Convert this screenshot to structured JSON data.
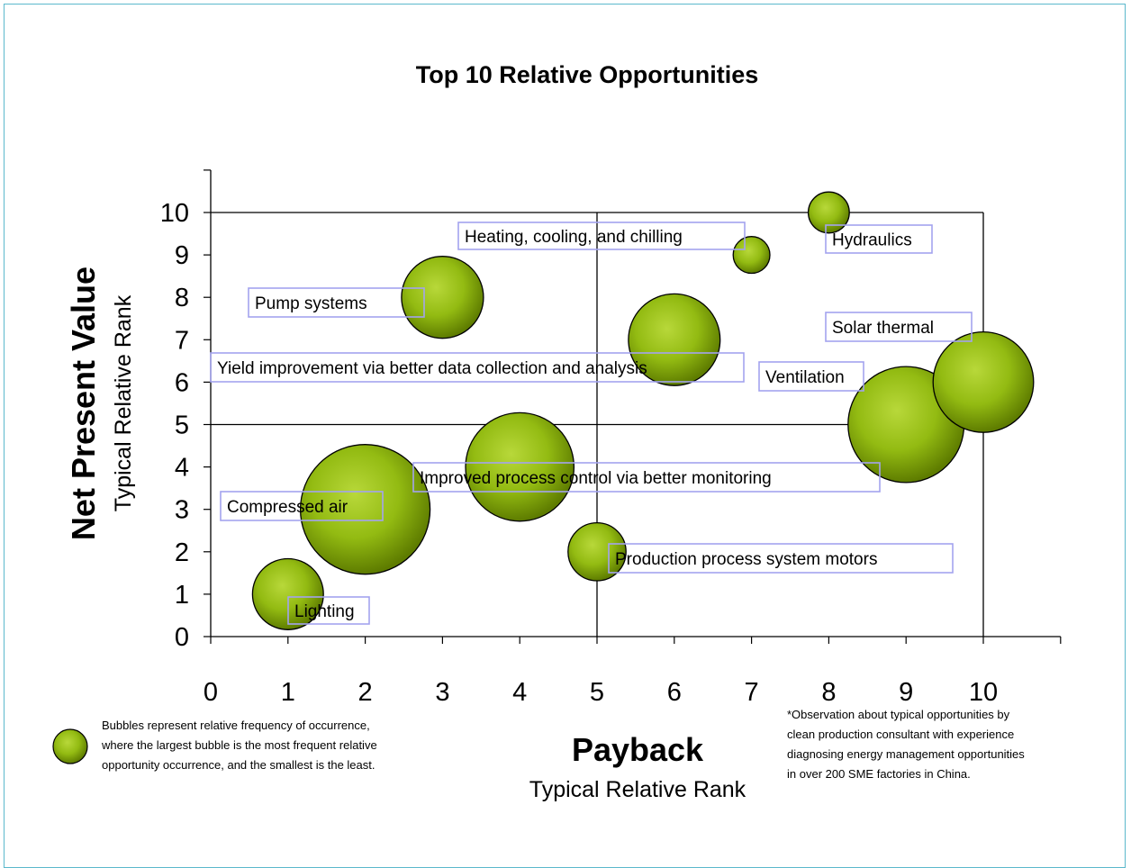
{
  "chart_data": {
    "type": "bubble",
    "title": "Top 10 Relative Opportunities",
    "x_axis": {
      "title": "Payback",
      "subtitle": "Typical Relative Rank",
      "range": [
        0,
        11
      ],
      "ticks": [
        0,
        1,
        2,
        3,
        4,
        5,
        6,
        7,
        8,
        9,
        10
      ]
    },
    "y_axis": {
      "title": "Net Present Value",
      "subtitle": "Typical Relative Rank",
      "range": [
        0,
        11
      ],
      "ticks": [
        0,
        1,
        2,
        3,
        4,
        5,
        6,
        7,
        8,
        9,
        10
      ]
    },
    "reference_lines": {
      "x": [
        5,
        10
      ],
      "y": [
        5,
        10
      ]
    },
    "bubble_color": "#8fb820",
    "points": [
      {
        "label": "Lighting",
        "x": 1,
        "y": 1,
        "relative_size": 3
      },
      {
        "label": "Compressed air",
        "x": 2,
        "y": 3,
        "relative_size": 10
      },
      {
        "label": "Pump systems",
        "x": 3,
        "y": 8,
        "relative_size": 4
      },
      {
        "label": "Improved process control via better monitoring",
        "x": 4,
        "y": 4,
        "relative_size": 7
      },
      {
        "label": "Production process system motors",
        "x": 5,
        "y": 2,
        "relative_size": 2
      },
      {
        "label": "Yield improvement via better data collection and analysis",
        "x": 6,
        "y": 7,
        "relative_size": 5
      },
      {
        "label": "Heating, cooling,  and chilling",
        "x": 7,
        "y": 9,
        "relative_size": 0.8
      },
      {
        "label": "Hydraulics",
        "x": 8,
        "y": 10,
        "relative_size": 1
      },
      {
        "label": "Ventilation",
        "x": 9,
        "y": 5,
        "relative_size": 8
      },
      {
        "label": "Solar thermal",
        "x": 10,
        "y": 6,
        "relative_size": 6
      }
    ],
    "legend_note": [
      "Bubbles represent relative frequency of occurrence,",
      "where the largest bubble is the most frequent relative",
      "opportunity occurrence, and the smallest is the least."
    ],
    "footnote": [
      "*Observation about typical opportunities by",
      "clean production consultant with experience",
      "diagnosing energy management opportunities",
      "in over 200 SME factories in China."
    ]
  }
}
